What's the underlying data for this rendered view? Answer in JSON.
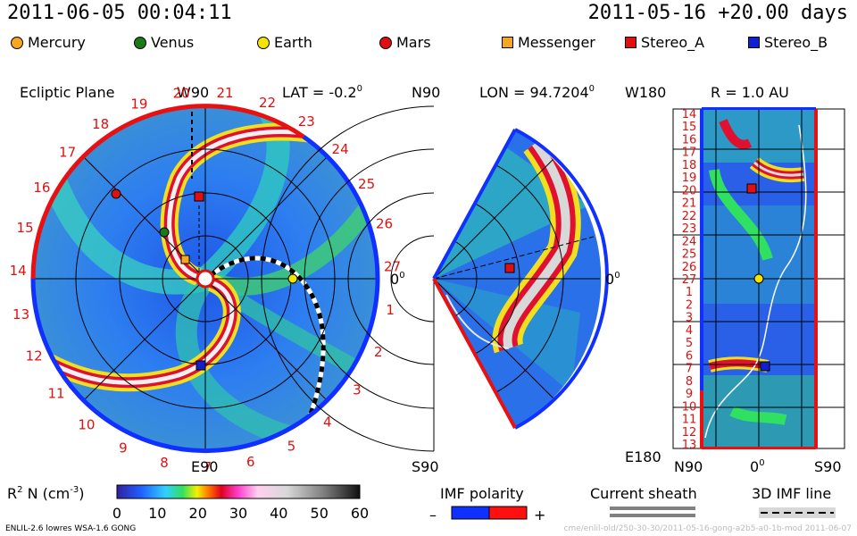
{
  "header": {
    "date_left": "2011-06-05 00:04:11",
    "date_right": "2011-05-16 +20.00 days"
  },
  "legend": [
    {
      "label": "Mercury",
      "shape": "circle",
      "color": "#f5a623"
    },
    {
      "label": "Venus",
      "shape": "circle",
      "color": "#1a7a1a"
    },
    {
      "label": "Earth",
      "shape": "circle",
      "color": "#f5e400"
    },
    {
      "label": "Mars",
      "shape": "circle",
      "color": "#e01010"
    },
    {
      "label": "Messenger",
      "shape": "square",
      "color": "#f5a623"
    },
    {
      "label": "Stereo_A",
      "shape": "square",
      "color": "#e01010"
    },
    {
      "label": "Stereo_B",
      "shape": "square",
      "color": "#1020d0"
    }
  ],
  "panel_ecliptic": {
    "title": "Ecliptic Plane",
    "top_label": "W90",
    "lat_label": "LAT = -0.2",
    "lat_sup": "0",
    "bottom_label": "E90",
    "right_label": "0",
    "right_sup": "0",
    "ring_labels": [
      "27",
      "1",
      "2",
      "3",
      "4",
      "5",
      "6",
      "7",
      "8",
      "9",
      "10",
      "11",
      "12",
      "13",
      "14",
      "15",
      "16",
      "17",
      "18",
      "19",
      "20",
      "21",
      "22",
      "23",
      "24",
      "25",
      "26"
    ]
  },
  "panel_meridional": {
    "top_left": "N90",
    "lon_label": "LON = 94.7204",
    "lon_sup": "0",
    "bottom_left": "S90",
    "right_label": "0",
    "right_sup": "0"
  },
  "panel_rect": {
    "top_left": "W180",
    "title": "R = 1.0 AU",
    "bottom_left": "E180",
    "x_labels": [
      "N90",
      "0",
      "S90"
    ],
    "x_sup": "0",
    "y_labels": [
      "14",
      "15",
      "16",
      "17",
      "18",
      "19",
      "20",
      "21",
      "22",
      "23",
      "24",
      "25",
      "26",
      "27",
      "1",
      "2",
      "3",
      "4",
      "5",
      "6",
      "7",
      "8",
      "9",
      "10",
      "11",
      "12",
      "13"
    ]
  },
  "colorbar": {
    "label": "R",
    "label_sup": "2",
    "label_rest": " N (cm",
    "label_exp": "-3",
    "label_close": ")",
    "ticks": [
      "0",
      "10",
      "20",
      "30",
      "40",
      "50",
      "60"
    ]
  },
  "imf": {
    "title": "IMF polarity",
    "minus": "–",
    "plus": "+",
    "minus_color": "#1030ff",
    "plus_color": "#ff1010"
  },
  "sheath": {
    "title": "Current sheath"
  },
  "imf3d": {
    "title": "3D IMF line"
  },
  "footer": {
    "left": "ENLIL-2.6 lowres WSA-1.6 GONG",
    "right": "cme/enlil-old/250-30-30/2011-05-16-gong-a2b5-a0-1b-mod    2011-06-07"
  }
}
